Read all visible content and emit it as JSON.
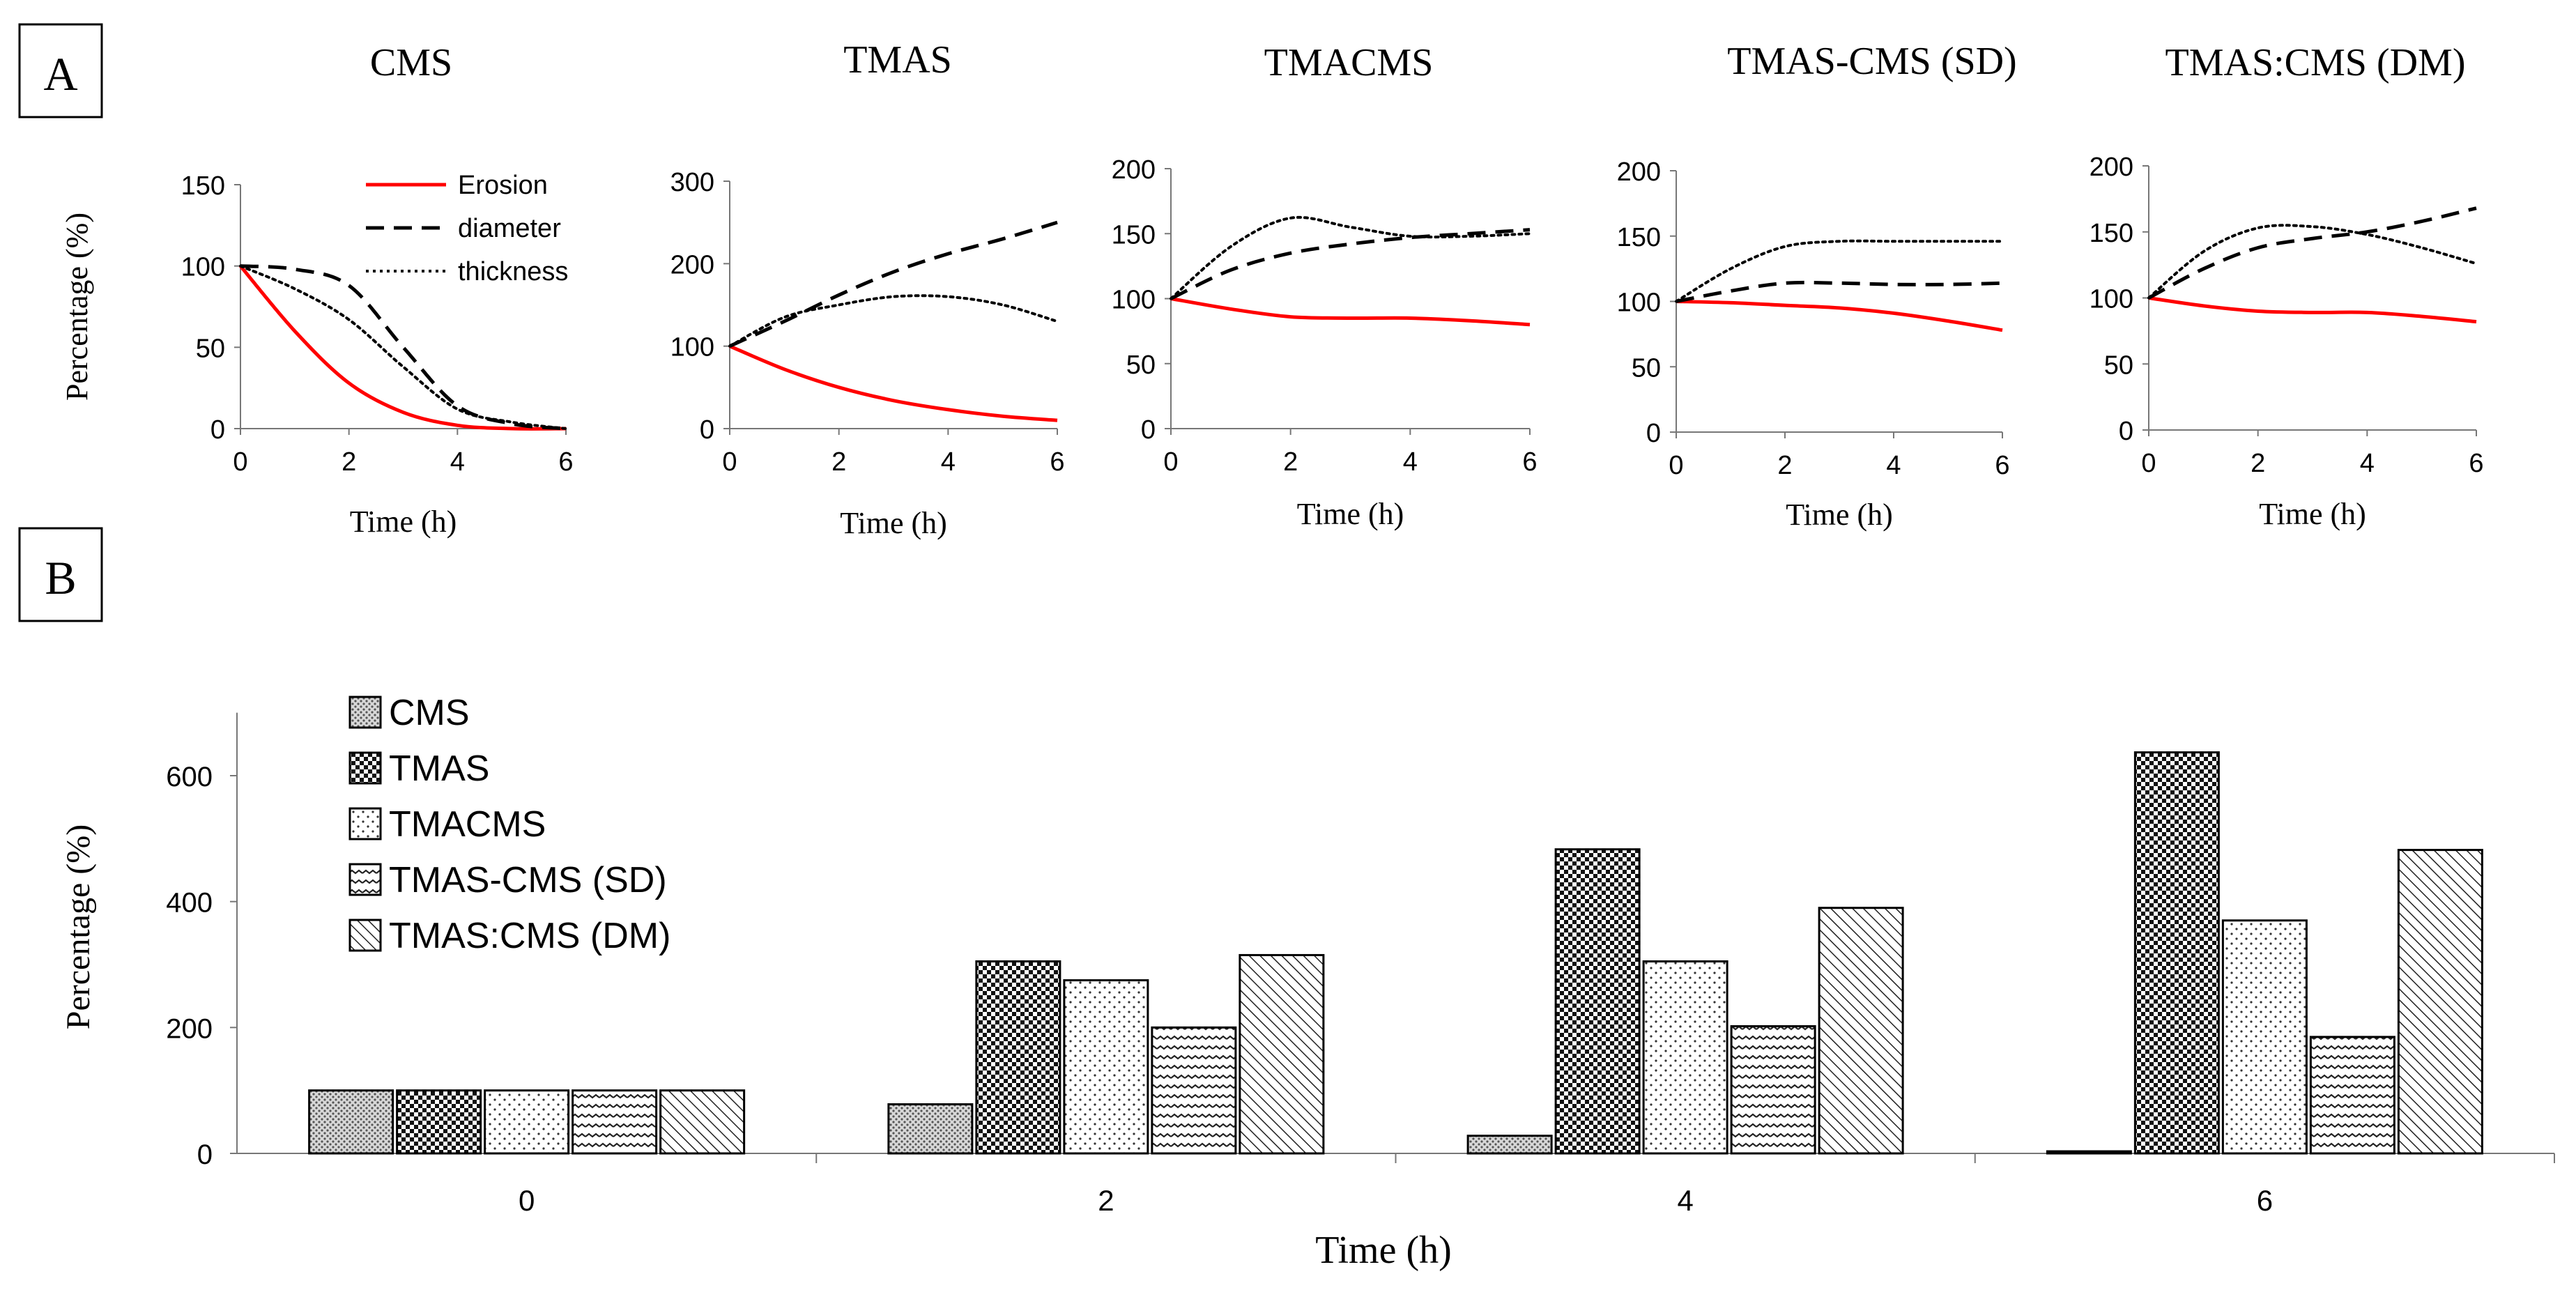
{
  "panel_labels": {
    "a": "A",
    "b": "B"
  },
  "chart_data": [
    {
      "id": "cms",
      "type": "line",
      "title": "CMS",
      "xlabel": "Time (h)",
      "ylabel": "Percentage (%)",
      "xlim": [
        0,
        6
      ],
      "ylim": [
        0,
        150
      ],
      "xticks": [
        "0",
        "2",
        "4",
        "6"
      ],
      "yticks": [
        "0",
        "50",
        "100",
        "150"
      ],
      "legend": [
        "Erosion",
        "diameter",
        "thickness"
      ],
      "series": [
        {
          "name": "Erosion",
          "style": "solid",
          "color": "#ff0000",
          "x": [
            0,
            1,
            2,
            3,
            4,
            5,
            6
          ],
          "y": [
            100,
            60,
            28,
            10,
            2,
            0,
            0
          ]
        },
        {
          "name": "diameter",
          "style": "dashed",
          "color": "#000000",
          "x": [
            0,
            1,
            2,
            3,
            4,
            5,
            6
          ],
          "y": [
            100,
            98,
            88,
            50,
            14,
            3,
            0
          ]
        },
        {
          "name": "thickness",
          "style": "dotted",
          "color": "#000000",
          "x": [
            0,
            1,
            2,
            3,
            4,
            5,
            6
          ],
          "y": [
            100,
            86,
            67,
            38,
            12,
            4,
            0
          ]
        }
      ]
    },
    {
      "id": "tmas",
      "type": "line",
      "title": "TMAS",
      "xlabel": "Time (h)",
      "ylabel": "",
      "xlim": [
        0,
        6
      ],
      "ylim": [
        0,
        300
      ],
      "xticks": [
        "0",
        "2",
        "4",
        "6"
      ],
      "yticks": [
        "0",
        "100",
        "200",
        "300"
      ],
      "series": [
        {
          "name": "Erosion",
          "style": "solid",
          "color": "#ff0000",
          "x": [
            0,
            1,
            2,
            3,
            4,
            5,
            6
          ],
          "y": [
            100,
            72,
            50,
            34,
            23,
            15,
            10
          ]
        },
        {
          "name": "diameter",
          "style": "dashed",
          "color": "#000000",
          "x": [
            0,
            1,
            2,
            3,
            4,
            5,
            6
          ],
          "y": [
            100,
            130,
            162,
            190,
            212,
            230,
            250
          ]
        },
        {
          "name": "thickness",
          "style": "dotted",
          "color": "#000000",
          "x": [
            0,
            1,
            2,
            3,
            4,
            5,
            6
          ],
          "y": [
            100,
            135,
            150,
            160,
            160,
            150,
            130
          ]
        }
      ]
    },
    {
      "id": "tmacms",
      "type": "line",
      "title": "TMACMS",
      "xlabel": "Time (h)",
      "ylabel": "",
      "xlim": [
        0,
        6
      ],
      "ylim": [
        0,
        200
      ],
      "xticks": [
        "0",
        "2",
        "4",
        "6"
      ],
      "yticks": [
        "0",
        "50",
        "100",
        "150",
        "200"
      ],
      "series": [
        {
          "name": "Erosion",
          "style": "solid",
          "color": "#ff0000",
          "x": [
            0,
            1,
            2,
            3,
            4,
            5,
            6
          ],
          "y": [
            100,
            92,
            86,
            85,
            85,
            83,
            80
          ]
        },
        {
          "name": "diameter",
          "style": "dashed",
          "color": "#000000",
          "x": [
            0,
            1,
            2,
            3,
            4,
            5,
            6
          ],
          "y": [
            100,
            122,
            135,
            142,
            147,
            150,
            153
          ]
        },
        {
          "name": "thickness",
          "style": "dotted",
          "color": "#000000",
          "x": [
            0,
            1,
            2,
            3,
            4,
            5,
            6
          ],
          "y": [
            100,
            140,
            162,
            155,
            148,
            148,
            150
          ]
        }
      ]
    },
    {
      "id": "tmas-cms-sd",
      "type": "line",
      "title": "TMAS-CMS  (SD)",
      "xlabel": "Time (h)",
      "ylabel": "",
      "xlim": [
        0,
        6
      ],
      "ylim": [
        0,
        200
      ],
      "xticks": [
        "0",
        "2",
        "4",
        "6"
      ],
      "yticks": [
        "0",
        "50",
        "100",
        "150",
        "200"
      ],
      "series": [
        {
          "name": "Erosion",
          "style": "solid",
          "color": "#ff0000",
          "x": [
            0,
            1,
            2,
            3,
            4,
            5,
            6
          ],
          "y": [
            100,
            99,
            97,
            95,
            91,
            85,
            78
          ]
        },
        {
          "name": "diameter",
          "style": "dashed",
          "color": "#000000",
          "x": [
            0,
            1,
            2,
            3,
            4,
            5,
            6
          ],
          "y": [
            100,
            108,
            114,
            114,
            113,
            113,
            114
          ]
        },
        {
          "name": "thickness",
          "style": "dotted",
          "color": "#000000",
          "x": [
            0,
            1,
            2,
            3,
            4,
            5,
            6
          ],
          "y": [
            100,
            125,
            142,
            146,
            146,
            146,
            146
          ]
        }
      ]
    },
    {
      "id": "tmas-cms-dm",
      "type": "line",
      "title": "TMAS:CMS  (DM)",
      "xlabel": "Time (h)",
      "ylabel": "",
      "xlim": [
        0,
        6
      ],
      "ylim": [
        0,
        200
      ],
      "xticks": [
        "0",
        "2",
        "4",
        "6"
      ],
      "yticks": [
        "0",
        "50",
        "100",
        "150",
        "200"
      ],
      "series": [
        {
          "name": "Erosion",
          "style": "solid",
          "color": "#ff0000",
          "x": [
            0,
            1,
            2,
            3,
            4,
            5,
            6
          ],
          "y": [
            100,
            94,
            90,
            89,
            89,
            86,
            82
          ]
        },
        {
          "name": "diameter",
          "style": "dashed",
          "color": "#000000",
          "x": [
            0,
            1,
            2,
            3,
            4,
            5,
            6
          ],
          "y": [
            100,
            122,
            138,
            145,
            150,
            158,
            168
          ]
        },
        {
          "name": "thickness",
          "style": "dotted",
          "color": "#000000",
          "x": [
            0,
            1,
            2,
            3,
            4,
            5,
            6
          ],
          "y": [
            100,
            135,
            153,
            154,
            148,
            138,
            126
          ]
        }
      ]
    },
    {
      "id": "swelling-bars",
      "type": "bar",
      "title": "",
      "xlabel": "Time (h)",
      "ylabel": "Percentage (%)",
      "ylim": [
        0,
        700
      ],
      "yticks": [
        "0",
        "200",
        "400",
        "600"
      ],
      "categories": [
        "0",
        "2",
        "4",
        "6"
      ],
      "legend_position": "top-left",
      "series": [
        {
          "name": "CMS",
          "pattern": "dots-fine",
          "values": [
            100,
            78,
            28,
            2
          ]
        },
        {
          "name": "TMAS",
          "pattern": "checker",
          "values": [
            100,
            305,
            483,
            637
          ]
        },
        {
          "name": "TMACMS",
          "pattern": "dots-sparse",
          "values": [
            100,
            275,
            305,
            370
          ]
        },
        {
          "name": "TMAS-CMS (SD)",
          "pattern": "wave",
          "values": [
            100,
            200,
            202,
            185
          ]
        },
        {
          "name": "TMAS:CMS (DM)",
          "pattern": "diagonal",
          "values": [
            100,
            315,
            390,
            482
          ]
        }
      ]
    }
  ]
}
